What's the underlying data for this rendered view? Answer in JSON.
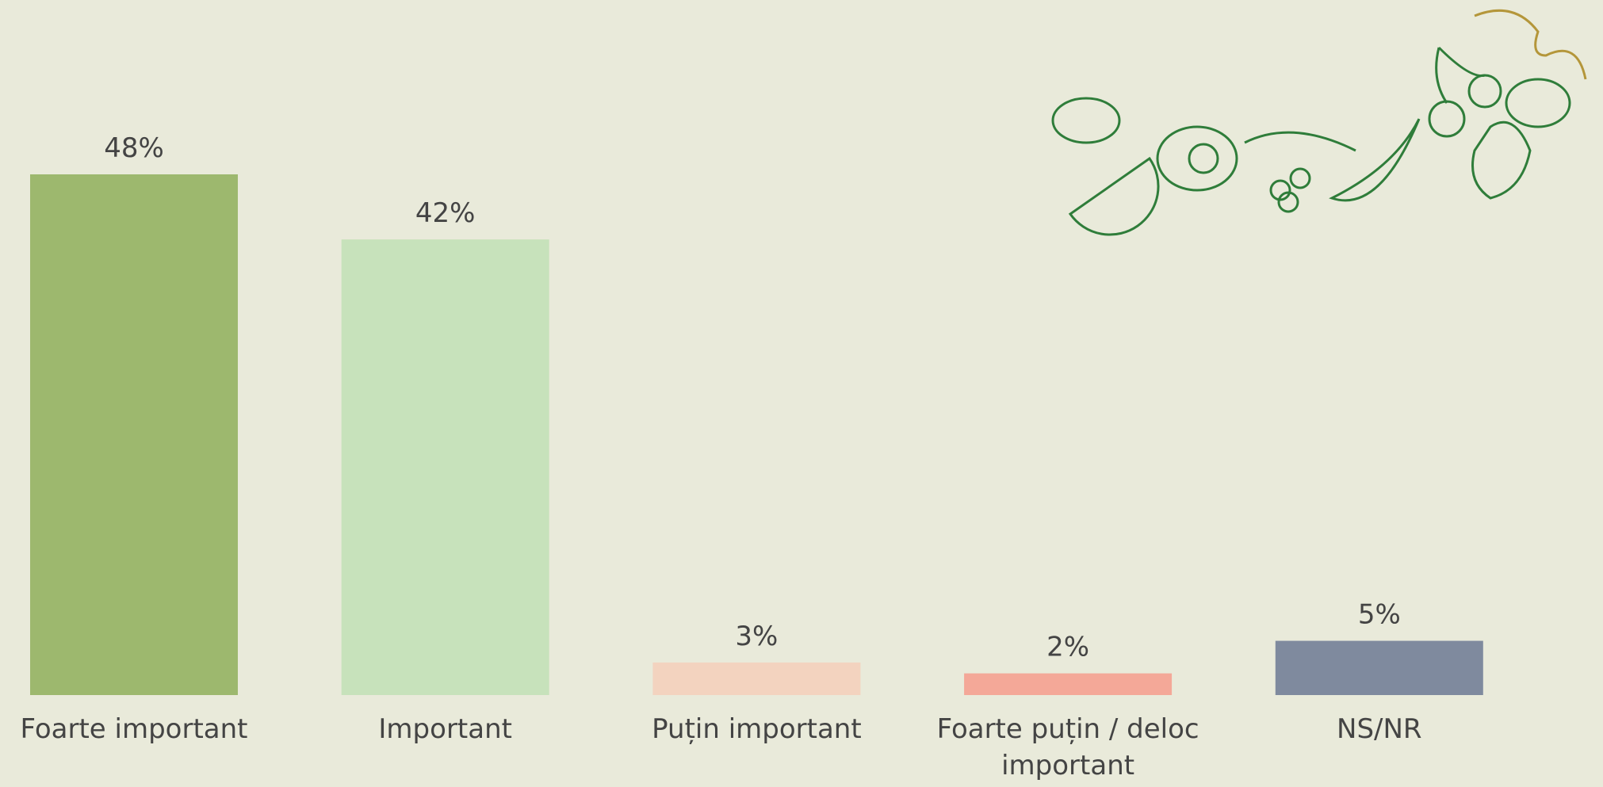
{
  "chart_data": {
    "type": "bar",
    "categories": [
      "Foarte important",
      "Important",
      "Puțin important",
      "Foarte puțin / deloc important",
      "NS/NR"
    ],
    "values": [
      48,
      42,
      3,
      2,
      5
    ],
    "value_labels": [
      "48%",
      "42%",
      "3%",
      "2%",
      "5%"
    ],
    "colors": [
      "#9db86e",
      "#c7e2bb",
      "#f3d3bf",
      "#f4a898",
      "#7f8a9e"
    ]
  }
}
